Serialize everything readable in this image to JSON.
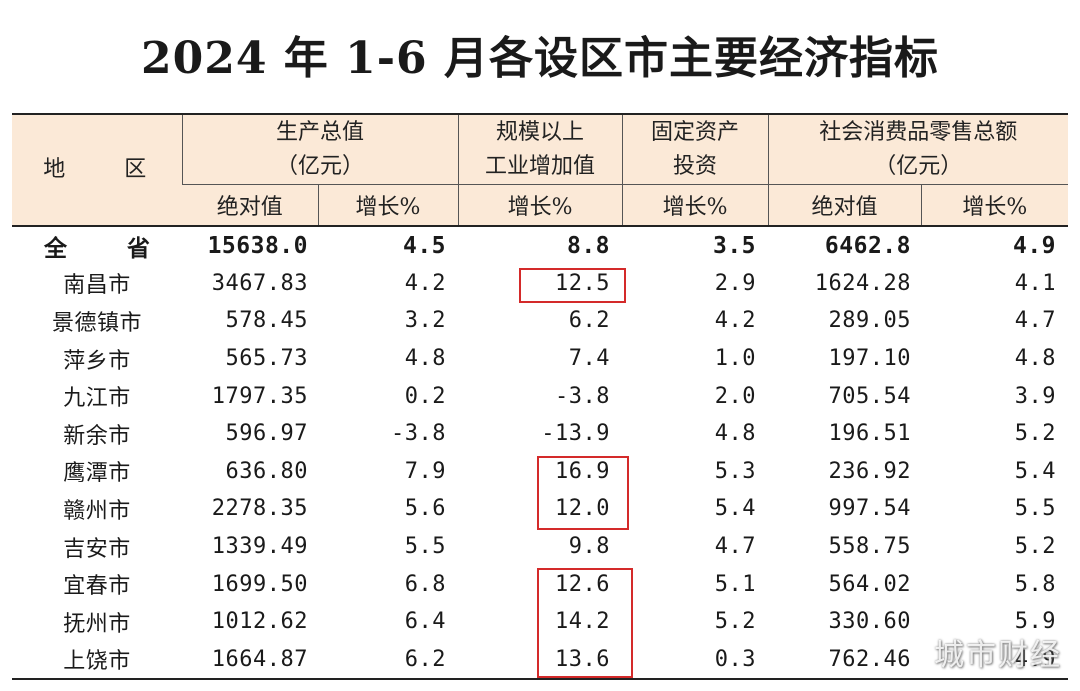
{
  "title": "2024 年 1-6 月各设区市主要经济指标",
  "headers": {
    "region": "地 区",
    "gdp": [
      "生产总值",
      "（亿元）"
    ],
    "industry": [
      "规模以上",
      "工业增加值"
    ],
    "investment": [
      "固定资产",
      "投资"
    ],
    "retail": [
      "社会消费品零售总额",
      "（亿元）"
    ],
    "sub": [
      "绝对值",
      "增长%",
      "增长%",
      "增长%",
      "绝对值",
      "增长%"
    ]
  },
  "rows": [
    {
      "region": "全 省",
      "gdp": "15638.0",
      "gdp_growth": "4.5",
      "industry_growth": "8.8",
      "investment_growth": "3.5",
      "retail": "6462.8",
      "retail_growth": "4.9"
    },
    {
      "region": "南昌市",
      "gdp": "3467.83",
      "gdp_growth": "4.2",
      "industry_growth": "12.5",
      "investment_growth": "2.9",
      "retail": "1624.28",
      "retail_growth": "4.1"
    },
    {
      "region": "景德镇市",
      "gdp": "578.45",
      "gdp_growth": "3.2",
      "industry_growth": "6.2",
      "investment_growth": "4.2",
      "retail": "289.05",
      "retail_growth": "4.7"
    },
    {
      "region": "萍乡市",
      "gdp": "565.73",
      "gdp_growth": "4.8",
      "industry_growth": "7.4",
      "investment_growth": "1.0",
      "retail": "197.10",
      "retail_growth": "4.8"
    },
    {
      "region": "九江市",
      "gdp": "1797.35",
      "gdp_growth": "0.2",
      "industry_growth": "-3.8",
      "investment_growth": "2.0",
      "retail": "705.54",
      "retail_growth": "3.9"
    },
    {
      "region": "新余市",
      "gdp": "596.97",
      "gdp_growth": "-3.8",
      "industry_growth": "-13.9",
      "investment_growth": "4.8",
      "retail": "196.51",
      "retail_growth": "5.2"
    },
    {
      "region": "鹰潭市",
      "gdp": "636.80",
      "gdp_growth": "7.9",
      "industry_growth": "16.9",
      "investment_growth": "5.3",
      "retail": "236.92",
      "retail_growth": "5.4"
    },
    {
      "region": "赣州市",
      "gdp": "2278.35",
      "gdp_growth": "5.6",
      "industry_growth": "12.0",
      "investment_growth": "5.4",
      "retail": "997.54",
      "retail_growth": "5.5"
    },
    {
      "region": "吉安市",
      "gdp": "1339.49",
      "gdp_growth": "5.5",
      "industry_growth": "9.8",
      "investment_growth": "4.7",
      "retail": "558.75",
      "retail_growth": "5.2"
    },
    {
      "region": "宜春市",
      "gdp": "1699.50",
      "gdp_growth": "6.8",
      "industry_growth": "12.6",
      "investment_growth": "5.1",
      "retail": "564.02",
      "retail_growth": "5.8"
    },
    {
      "region": "抚州市",
      "gdp": "1012.62",
      "gdp_growth": "6.4",
      "industry_growth": "14.2",
      "investment_growth": "5.2",
      "retail": "330.60",
      "retail_growth": "5.9"
    },
    {
      "region": "上饶市",
      "gdp": "1664.87",
      "gdp_growth": "6.2",
      "industry_growth": "13.6",
      "investment_growth": "0.3",
      "retail": "762.46",
      "retail_growth": "4.9"
    }
  ],
  "highlight_color": "#d42a2a",
  "watermark": "城市财经"
}
